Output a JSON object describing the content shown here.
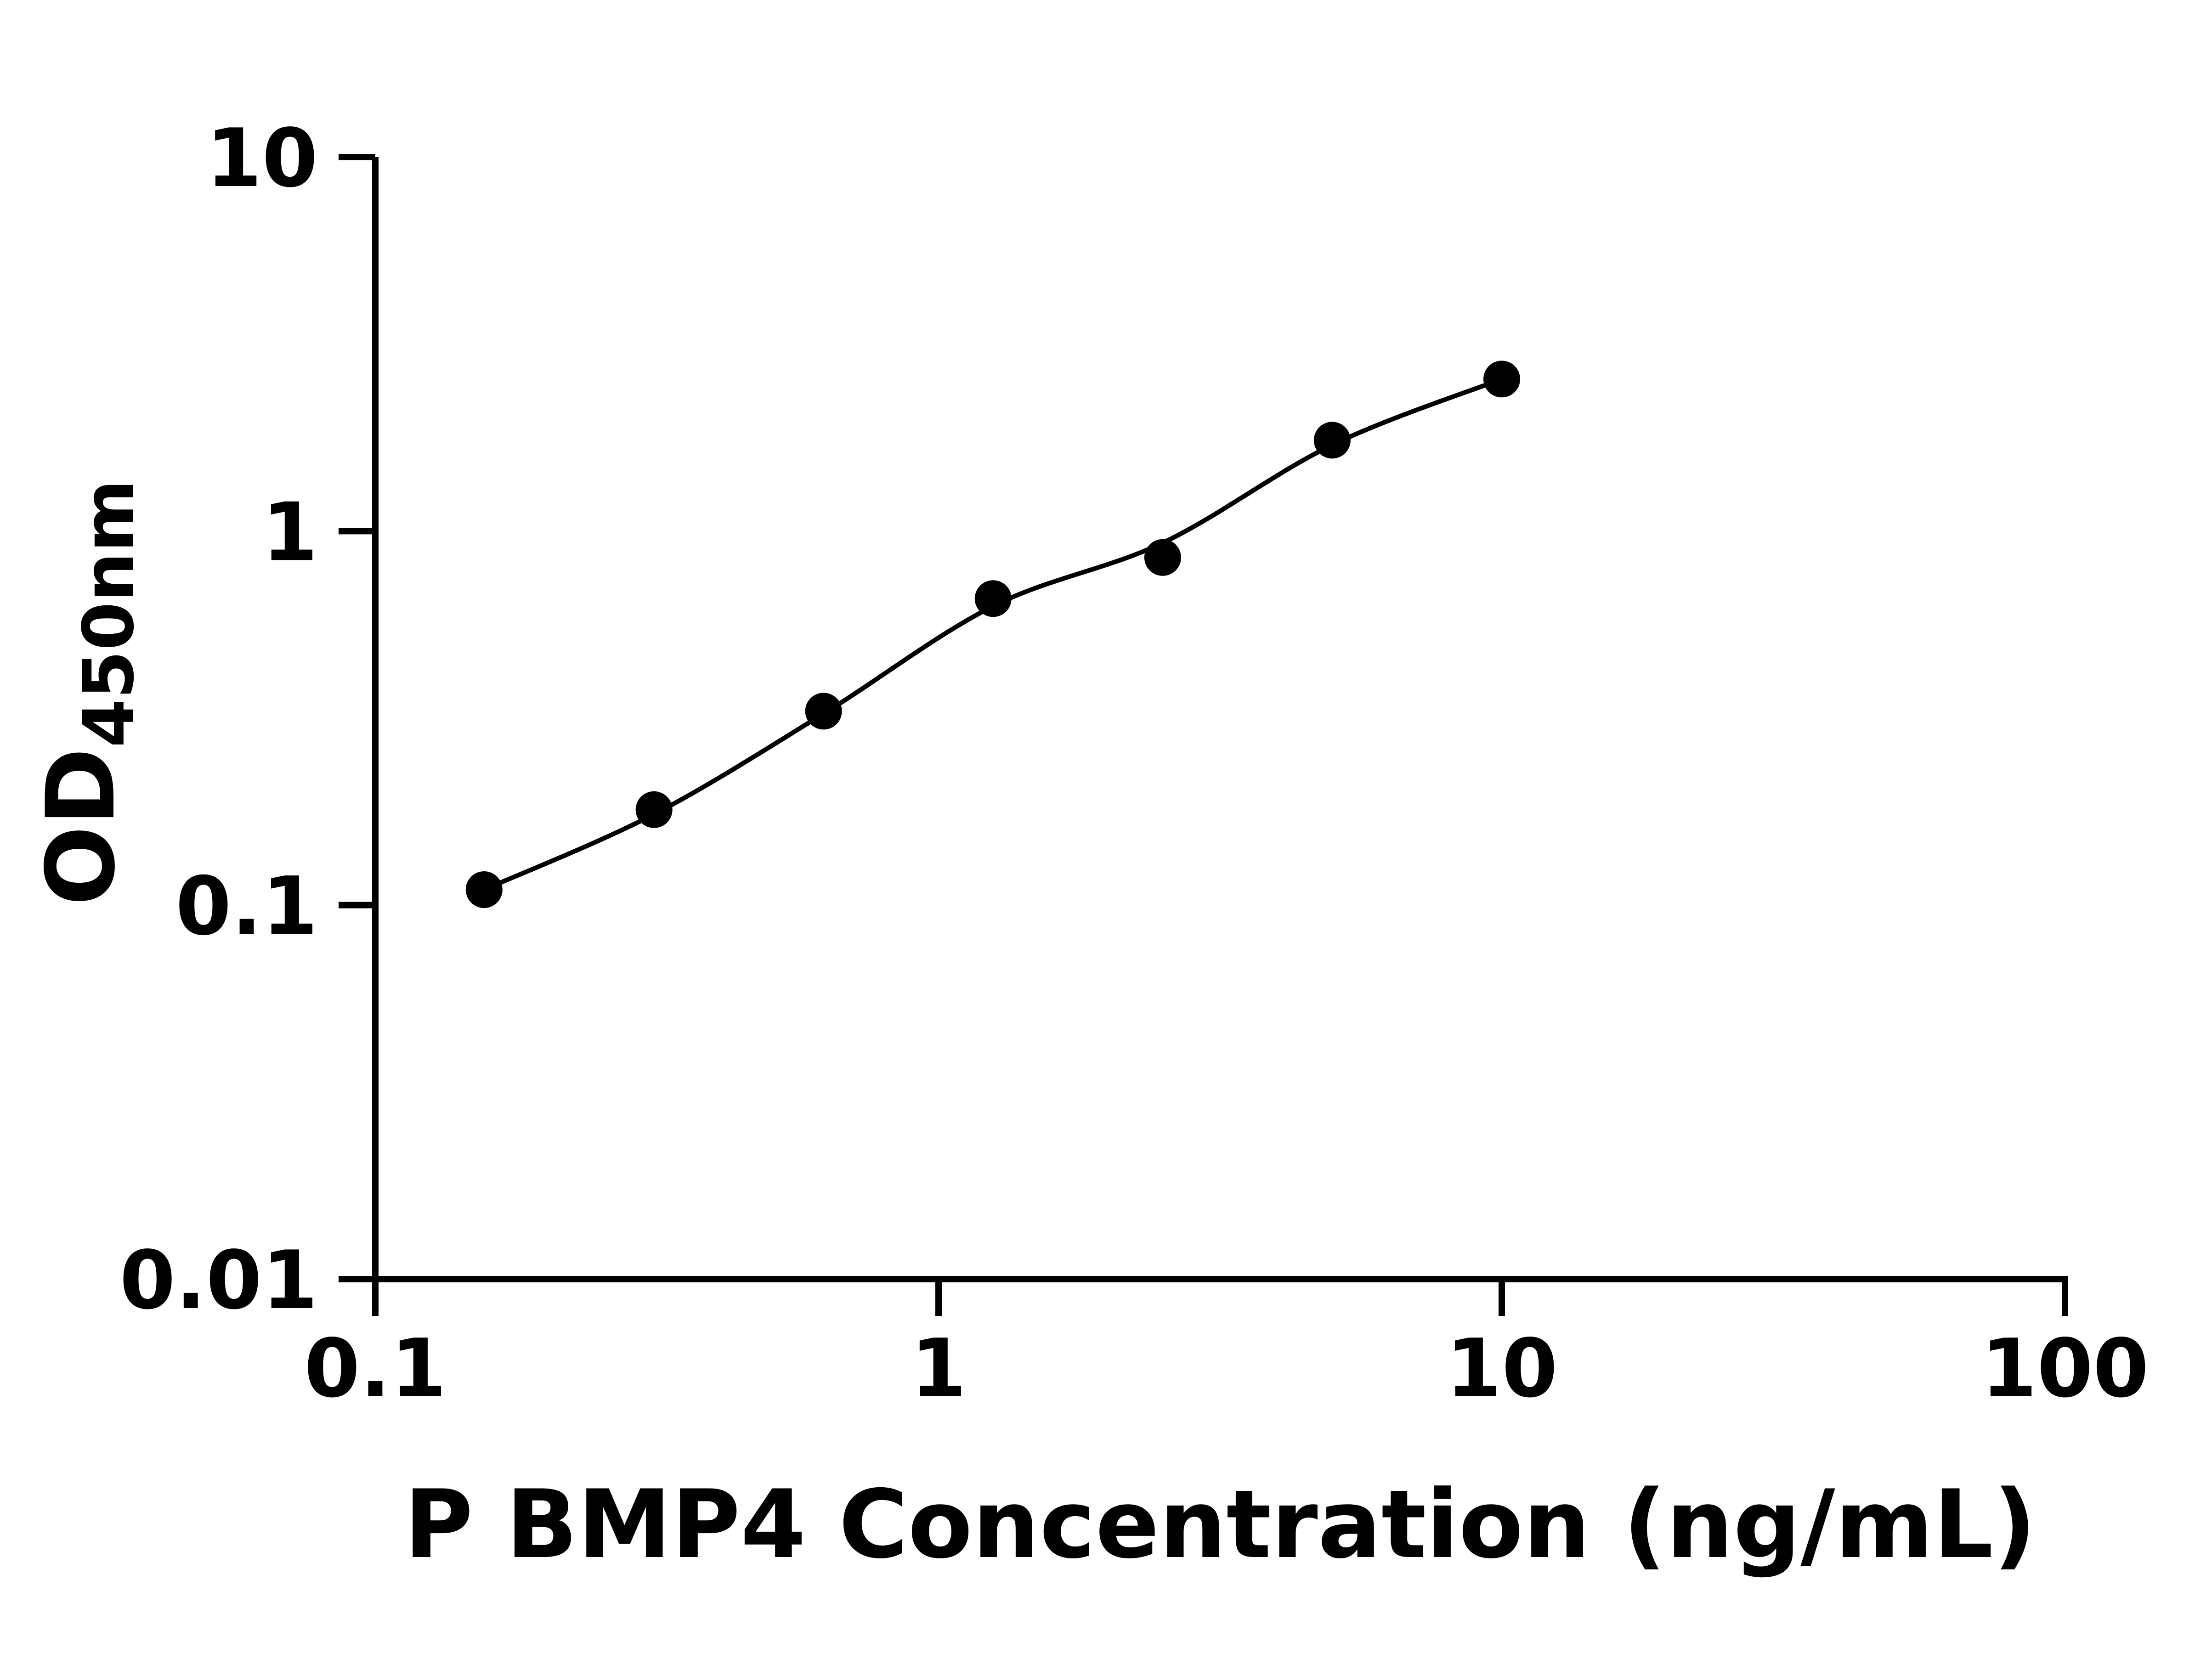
{
  "page": {
    "background": "#ffffff"
  },
  "chart_data": {
    "type": "scatter",
    "title": "",
    "xlabel": "P BMP4 Concentration (ng/mL)",
    "ylabel": "OD450nm",
    "ylabel_parts": {
      "main": "OD",
      "subscript": "450nm"
    },
    "x_scale": "log",
    "y_scale": "log",
    "xlim": [
      0.1,
      100
    ],
    "ylim": [
      0.01,
      10
    ],
    "x_ticks": [
      {
        "value": 0.1,
        "label": "0.1"
      },
      {
        "value": 1,
        "label": "1"
      },
      {
        "value": 10,
        "label": "10"
      },
      {
        "value": 100,
        "label": "100"
      }
    ],
    "y_ticks": [
      {
        "value": 0.01,
        "label": "0.01"
      },
      {
        "value": 0.1,
        "label": "0.1"
      },
      {
        "value": 1,
        "label": "1"
      },
      {
        "value": 10,
        "label": "10"
      }
    ],
    "grid": false,
    "legend": false,
    "axis_color": "#000000",
    "series": [
      {
        "marker": "circle",
        "color": "#000000",
        "points": [
          {
            "x": 0.156,
            "y": 0.11
          },
          {
            "x": 0.3125,
            "y": 0.18
          },
          {
            "x": 0.625,
            "y": 0.33
          },
          {
            "x": 1.25,
            "y": 0.66
          },
          {
            "x": 2.5,
            "y": 0.85
          },
          {
            "x": 5,
            "y": 1.75
          },
          {
            "x": 10,
            "y": 2.55
          }
        ],
        "trend": [
          {
            "x": 0.156,
            "y": 0.11
          },
          {
            "x": 0.3125,
            "y": 0.175
          },
          {
            "x": 0.625,
            "y": 0.325
          },
          {
            "x": 1.25,
            "y": 0.63
          },
          {
            "x": 2.5,
            "y": 0.93
          },
          {
            "x": 5,
            "y": 1.7
          },
          {
            "x": 10,
            "y": 2.55
          }
        ]
      }
    ]
  }
}
